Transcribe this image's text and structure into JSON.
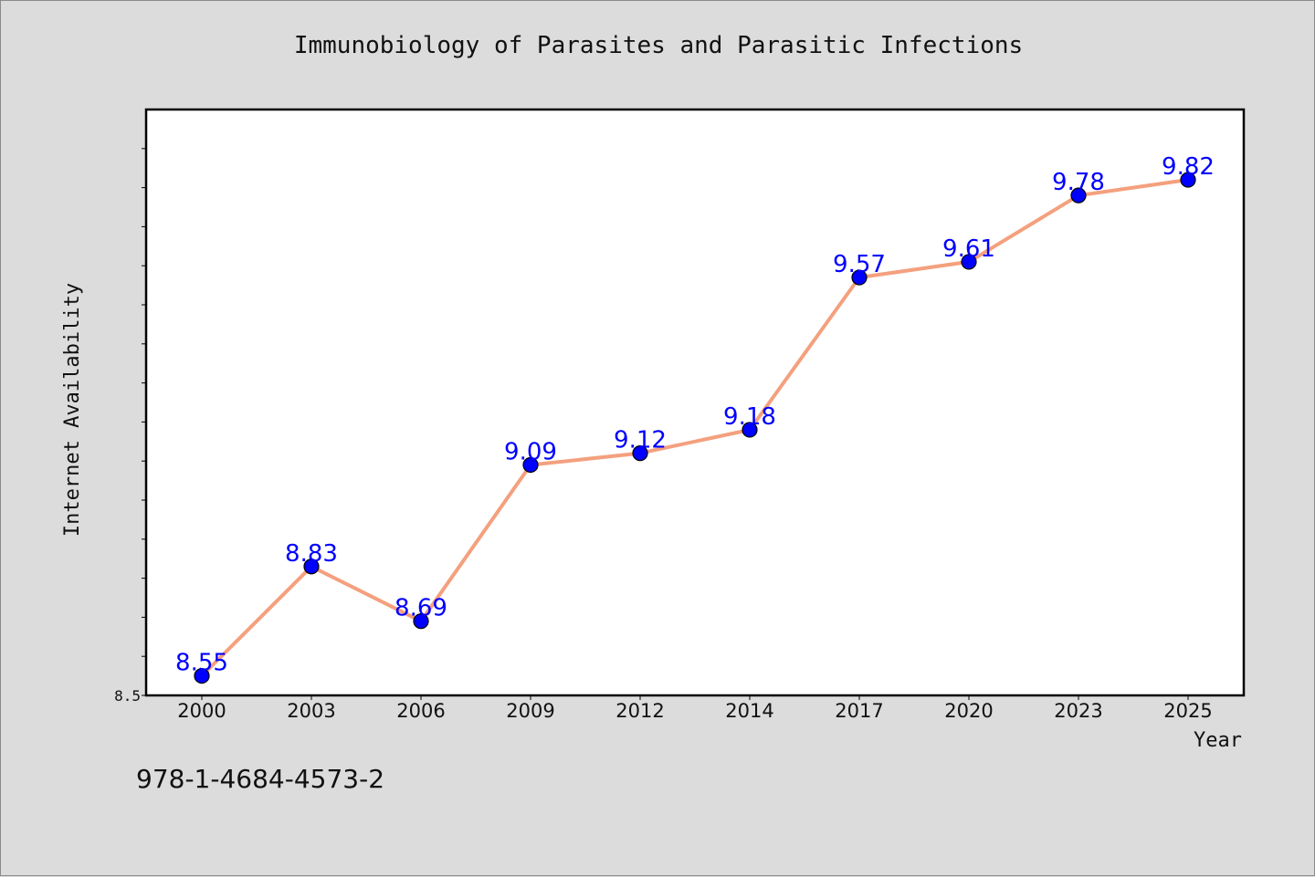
{
  "title": "Immunobiology of Parasites and Parasitic Infections",
  "isbn_text": "978-1-4684-4573-2",
  "chart_data": {
    "type": "line",
    "title": "Immunobiology of Parasites and Parasitic Infections",
    "xlabel": "Year",
    "ylabel": "Internet Availability",
    "categories": [
      "2000",
      "2003",
      "2006",
      "2009",
      "2012",
      "2014",
      "2017",
      "2020",
      "2023",
      "2025"
    ],
    "values": [
      8.55,
      8.83,
      8.69,
      9.09,
      9.12,
      9.18,
      9.57,
      9.61,
      9.78,
      9.82
    ],
    "data_labels": [
      "8.55",
      "8.83",
      "8.69",
      "9.09",
      "9.12",
      "9.18",
      "9.57",
      "9.61",
      "9.78",
      "9.82"
    ],
    "ylim": [
      8.5,
      10.0
    ],
    "y_tick_step": 0.1,
    "y_tick_labels": [
      "8.5"
    ],
    "grid": false,
    "line_color": "#f4a07e",
    "marker_color": "#0000ff",
    "label_color": "#0000ff",
    "plot_background": "#ffffff",
    "page_background": "#dcdcdc"
  }
}
